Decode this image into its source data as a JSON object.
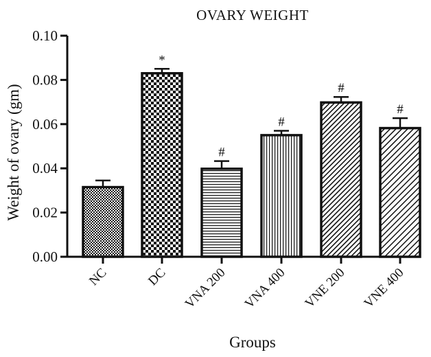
{
  "chart_data": {
    "type": "bar",
    "title": "OVARY WEIGHT",
    "xlabel": "Groups",
    "ylabel": "Weight of ovary (gm)",
    "ylim": [
      0,
      0.1
    ],
    "yticks": [
      "0.00",
      "0.02",
      "0.04",
      "0.06",
      "0.08",
      "0.10"
    ],
    "categories": [
      "NC",
      "DC",
      "VNA 200",
      "VNA 400",
      "VNE 200",
      "VNE 400"
    ],
    "values": [
      0.0315,
      0.083,
      0.0398,
      0.055,
      0.0698,
      0.0582
    ],
    "errors": [
      0.003,
      0.002,
      0.0035,
      0.002,
      0.0025,
      0.0045
    ],
    "markers": [
      "",
      "*",
      "#",
      "#",
      "#",
      "#"
    ],
    "patterns": [
      "fine-check",
      "check",
      "horizontal-lines",
      "vertical-lines",
      "diagonal-dense",
      "diagonal"
    ],
    "grid": false,
    "legend": "none"
  }
}
